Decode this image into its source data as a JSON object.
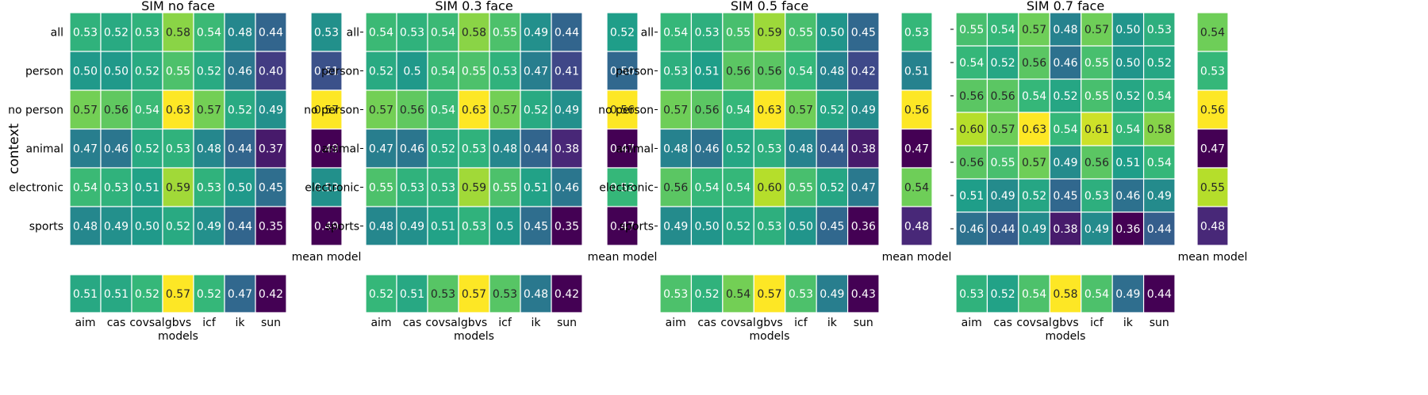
{
  "chart_data": [
    {
      "type": "heatmap",
      "title": "SIM no face",
      "ylabel": "context",
      "xlabel": "models",
      "row_labels": [
        "all",
        "person",
        "no person",
        "animal",
        "electronic",
        "sports"
      ],
      "col_labels": [
        "aim",
        "cas",
        "covsal",
        "gbvs",
        "icf",
        "ik",
        "sun"
      ],
      "values": [
        [
          "0.53",
          "0.52",
          "0.53",
          "0.58",
          "0.54",
          "0.48",
          "0.44"
        ],
        [
          "0.50",
          "0.50",
          "0.52",
          "0.55",
          "0.52",
          "0.46",
          "0.40"
        ],
        [
          "0.57",
          "0.56",
          "0.54",
          "0.63",
          "0.57",
          "0.52",
          "0.49"
        ],
        [
          "0.47",
          "0.46",
          "0.52",
          "0.53",
          "0.48",
          "0.44",
          "0.37"
        ],
        [
          "0.54",
          "0.53",
          "0.51",
          "0.59",
          "0.53",
          "0.50",
          "0.45"
        ],
        [
          "0.48",
          "0.49",
          "0.50",
          "0.52",
          "0.49",
          "0.44",
          "0.35"
        ]
      ],
      "mean_model_label": "mean model",
      "mean_model": [
        "0.53",
        "0.51",
        "0.57",
        "0.49",
        "0.53",
        "0.49"
      ],
      "mean_context": [
        "0.51",
        "0.51",
        "0.52",
        "0.57",
        "0.52",
        "0.47",
        "0.42"
      ]
    },
    {
      "type": "heatmap",
      "title": "SIM 0.3 face",
      "xlabel": "models",
      "row_labels": [
        "all",
        "person",
        "no person",
        "animal",
        "electronic",
        "sports"
      ],
      "col_labels": [
        "aim",
        "cas",
        "covsal",
        "gbvs",
        "icf",
        "ik",
        "sun"
      ],
      "values": [
        [
          "0.54",
          "0.53",
          "0.54",
          "0.58",
          "0.55",
          "0.49",
          "0.44"
        ],
        [
          "0.52",
          "0.5",
          "0.54",
          "0.55",
          "0.53",
          "0.47",
          "0.41"
        ],
        [
          "0.57",
          "0.56",
          "0.54",
          "0.63",
          "0.57",
          "0.52",
          "0.49"
        ],
        [
          "0.47",
          "0.46",
          "0.52",
          "0.53",
          "0.48",
          "0.44",
          "0.38"
        ],
        [
          "0.55",
          "0.53",
          "0.53",
          "0.59",
          "0.55",
          "0.51",
          "0.46"
        ],
        [
          "0.48",
          "0.49",
          "0.51",
          "0.53",
          "0.5",
          "0.45",
          "0.35"
        ]
      ],
      "mean_model_label": "mean model",
      "mean_model": [
        "0.52",
        "0.50",
        "0.56",
        "0.47",
        "0.53",
        "0.47"
      ],
      "mean_context": [
        "0.52",
        "0.51",
        "0.53",
        "0.57",
        "0.53",
        "0.48",
        "0.42"
      ]
    },
    {
      "type": "heatmap",
      "title": "SIM 0.5 face",
      "xlabel": "models",
      "row_labels": [
        "all",
        "person",
        "no person",
        "animal",
        "electronic",
        "sports"
      ],
      "col_labels": [
        "aim",
        "cas",
        "covsal",
        "gbvs",
        "icf",
        "ik",
        "sun"
      ],
      "values": [
        [
          "0.54",
          "0.53",
          "0.55",
          "0.59",
          "0.55",
          "0.50",
          "0.45"
        ],
        [
          "0.53",
          "0.51",
          "0.56",
          "0.56",
          "0.54",
          "0.48",
          "0.42"
        ],
        [
          "0.57",
          "0.56",
          "0.54",
          "0.63",
          "0.57",
          "0.52",
          "0.49"
        ],
        [
          "0.48",
          "0.46",
          "0.52",
          "0.53",
          "0.48",
          "0.44",
          "0.38"
        ],
        [
          "0.56",
          "0.54",
          "0.54",
          "0.60",
          "0.55",
          "0.52",
          "0.47"
        ],
        [
          "0.49",
          "0.50",
          "0.52",
          "0.53",
          "0.50",
          "0.45",
          "0.36"
        ]
      ],
      "mean_model_label": "mean model",
      "mean_model": [
        "0.53",
        "0.51",
        "0.56",
        "0.47",
        "0.54",
        "0.48"
      ],
      "mean_context": [
        "0.53",
        "0.52",
        "0.54",
        "0.57",
        "0.53",
        "0.49",
        "0.43"
      ]
    },
    {
      "type": "heatmap",
      "title": "SIM 0.7 face",
      "xlabel": "models",
      "row_labels": [],
      "col_labels": [
        "aim",
        "cas",
        "covsal",
        "gbvs",
        "icf",
        "ik",
        "sun"
      ],
      "values": [
        [
          "0.55",
          "0.54",
          "0.57",
          "0.48",
          "0.57",
          "0.50",
          "0.53"
        ],
        [
          "0.54",
          "0.52",
          "0.56",
          "0.46",
          "0.55",
          "0.50",
          "0.52"
        ],
        [
          "0.56",
          "0.56",
          "0.54",
          "0.52",
          "0.55",
          "0.52",
          "0.54"
        ],
        [
          "0.60",
          "0.57",
          "0.63",
          "0.54",
          "0.61",
          "0.54",
          "0.58"
        ],
        [
          "0.56",
          "0.55",
          "0.57",
          "0.49",
          "0.56",
          "0.51",
          "0.54"
        ],
        [
          "0.51",
          "0.49",
          "0.52",
          "0.45",
          "0.53",
          "0.46",
          "0.49"
        ],
        [
          "0.46",
          "0.44",
          "0.49",
          "0.38",
          "0.49",
          "0.36",
          "0.44"
        ]
      ],
      "mean_model_label": "mean model",
      "mean_model": [
        "0.54",
        "0.53",
        "0.56",
        "0.47",
        "0.55",
        "0.48"
      ],
      "mean_context": [
        "0.53",
        "0.52",
        "0.54",
        "0.58",
        "0.54",
        "0.49",
        "0.44"
      ]
    }
  ]
}
